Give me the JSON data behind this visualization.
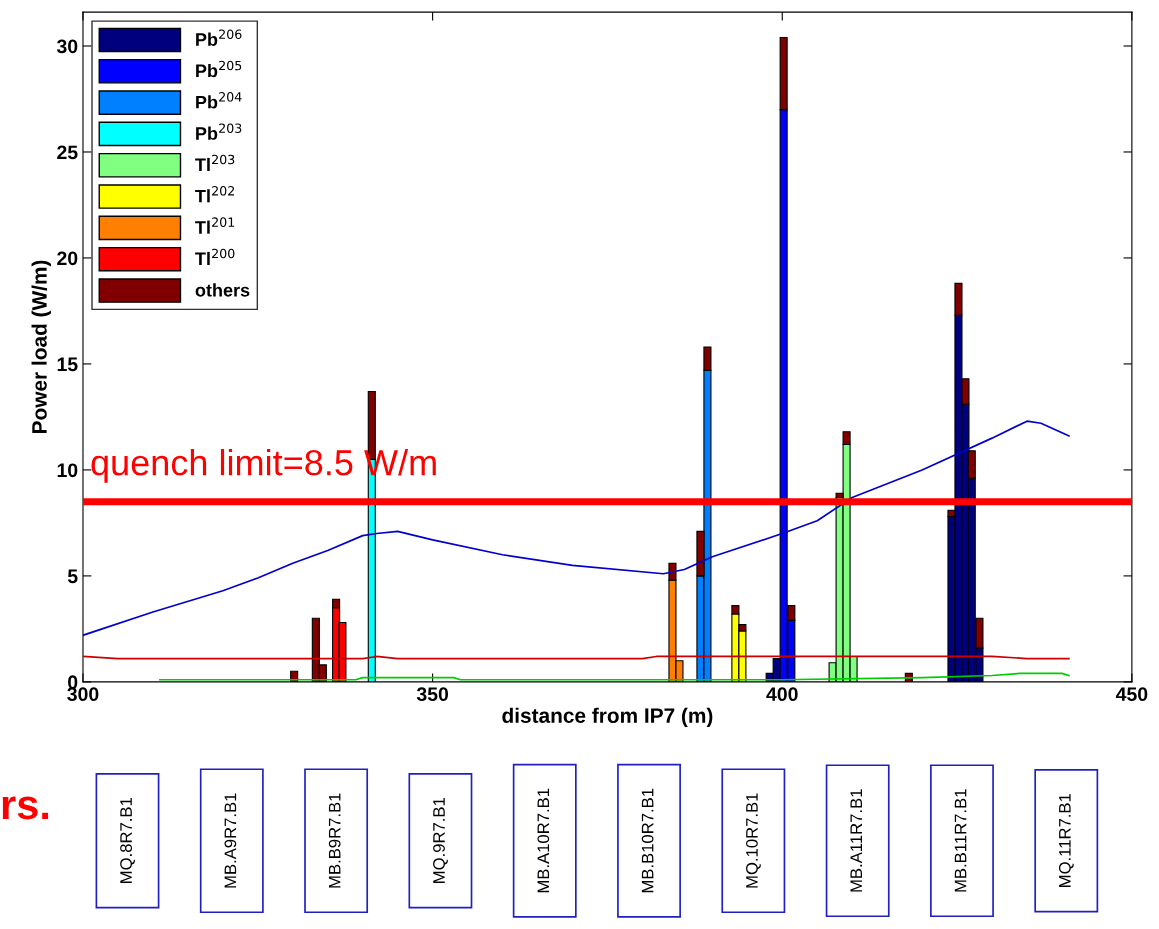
{
  "chart_data": [
    {
      "type": "bar",
      "stacked": true,
      "xlabel": "distance from IP7 (m)",
      "ylabel": "Power load (W/m)",
      "xlim": [
        300,
        450
      ],
      "ylim": [
        0,
        31.6
      ],
      "xticks": [
        300,
        350,
        400,
        450
      ],
      "yticks": [
        0,
        5,
        10,
        15,
        20,
        25,
        30
      ],
      "grid": false,
      "legend": "top left",
      "x": [
        330.2,
        333.3,
        334.3,
        336.2,
        337.1,
        341.3,
        384.3,
        385.3,
        388.3,
        389.3,
        393.3,
        394.3,
        398.2,
        399.2,
        400.2,
        401.3,
        407.2,
        408.2,
        409.2,
        410.2,
        418.1,
        424.2,
        425.2,
        426.2,
        427.1,
        428.2
      ],
      "series": [
        {
          "name": "Pb$^{206}$",
          "color": "#00007f",
          "values": [
            null,
            null,
            null,
            null,
            null,
            null,
            null,
            null,
            null,
            null,
            null,
            null,
            0.4,
            1.1,
            null,
            null,
            null,
            null,
            null,
            null,
            null,
            7.8,
            17.3,
            13.1,
            9.6,
            1.6
          ]
        },
        {
          "name": "Pb$^{205}$",
          "color": "#0000ff",
          "values": [
            null,
            null,
            null,
            null,
            null,
            null,
            null,
            null,
            null,
            null,
            null,
            null,
            null,
            null,
            27.0,
            2.9,
            null,
            null,
            null,
            null,
            null,
            null,
            null,
            null,
            null,
            null
          ]
        },
        {
          "name": "Pb$^{204}$",
          "color": "#0080ff",
          "values": [
            null,
            null,
            null,
            null,
            null,
            null,
            null,
            null,
            5.0,
            14.7,
            null,
            null,
            null,
            null,
            null,
            null,
            null,
            null,
            null,
            null,
            null,
            null,
            null,
            null,
            null,
            null
          ]
        },
        {
          "name": "Pb$^{203}$",
          "color": "#00ffff",
          "values": [
            null,
            null,
            null,
            null,
            null,
            10.5,
            null,
            null,
            null,
            null,
            null,
            null,
            null,
            null,
            null,
            null,
            null,
            null,
            null,
            null,
            null,
            null,
            null,
            null,
            null,
            null
          ]
        },
        {
          "name": "Tl$^{203}$",
          "color": "#80ff80",
          "values": [
            null,
            null,
            null,
            null,
            null,
            null,
            null,
            null,
            null,
            null,
            null,
            null,
            null,
            null,
            null,
            null,
            0.9,
            8.7,
            11.2,
            1.2,
            null,
            null,
            null,
            null,
            null,
            null
          ]
        },
        {
          "name": "Tl$^{202}$",
          "color": "#ffff00",
          "values": [
            null,
            null,
            null,
            null,
            null,
            null,
            null,
            null,
            null,
            null,
            3.2,
            2.4,
            null,
            null,
            null,
            null,
            null,
            null,
            null,
            null,
            null,
            null,
            null,
            null,
            null,
            null
          ]
        },
        {
          "name": "Tl$^{201}$",
          "color": "#ff8000",
          "values": [
            null,
            null,
            null,
            null,
            null,
            null,
            4.8,
            1.0,
            null,
            null,
            null,
            null,
            null,
            null,
            null,
            null,
            null,
            null,
            null,
            null,
            null,
            null,
            null,
            null,
            null,
            null
          ]
        },
        {
          "name": "Tl$^{200}$",
          "color": "#ff0000",
          "values": [
            null,
            null,
            null,
            3.5,
            2.8,
            null,
            null,
            null,
            null,
            null,
            null,
            null,
            null,
            null,
            null,
            null,
            null,
            null,
            null,
            null,
            null,
            null,
            null,
            null,
            null,
            null
          ]
        },
        {
          "name": "others",
          "color": "#800000",
          "values": [
            0.5,
            3.0,
            0.8,
            0.4,
            null,
            3.2,
            0.8,
            null,
            2.1,
            1.1,
            0.4,
            0.3,
            null,
            null,
            3.4,
            0.7,
            null,
            0.2,
            0.6,
            null,
            0.4,
            0.3,
            1.5,
            1.2,
            1.3,
            1.4
          ]
        },
        {
          "type": "line",
          "color": "#0000cc",
          "x": [
            300,
            310,
            320,
            325,
            330,
            335,
            340,
            342,
            345,
            350,
            360,
            370,
            383,
            386,
            390,
            400,
            405,
            410,
            420,
            430,
            435,
            437,
            441
          ],
          "values": [
            2.2,
            3.3,
            4.3,
            4.9,
            5.6,
            6.2,
            6.9,
            7.0,
            7.1,
            6.7,
            6.0,
            5.5,
            5.1,
            5.3,
            5.9,
            7.0,
            7.6,
            8.7,
            10.0,
            11.5,
            12.3,
            12.2,
            11.6
          ]
        },
        {
          "type": "line",
          "color": "#cc0000",
          "x": [
            300,
            305,
            340,
            342,
            345,
            380,
            382,
            390,
            430,
            435,
            441
          ],
          "values": [
            1.2,
            1.1,
            1.1,
            1.2,
            1.1,
            1.1,
            1.2,
            1.2,
            1.2,
            1.1,
            1.1
          ]
        },
        {
          "type": "line",
          "color": "#00cc00",
          "x": [
            311,
            339,
            340,
            353,
            354,
            400,
            420,
            430,
            434,
            440,
            441
          ],
          "values": [
            0.1,
            0.1,
            0.2,
            0.2,
            0.1,
            0.1,
            0.2,
            0.3,
            0.4,
            0.4,
            0.3
          ]
        }
      ],
      "ref_lines": [
        {
          "axis": "y",
          "value": 8.5,
          "label": "quench limit=8.5 W/m",
          "color": "#ff0000"
        }
      ],
      "annotations": [
        "rs.",
        "MQ.8R7.B1",
        "MB.A9R7.B1",
        "MB.B9R7.B1",
        "MQ.9R7.B1",
        "MB.A10R7.B1",
        "MB.B10R7.B1",
        "MQ.10R7.B1",
        "MB.A11R7.B1",
        "MB.B11R7.B1",
        "MQ.11R7.B1"
      ]
    }
  ]
}
